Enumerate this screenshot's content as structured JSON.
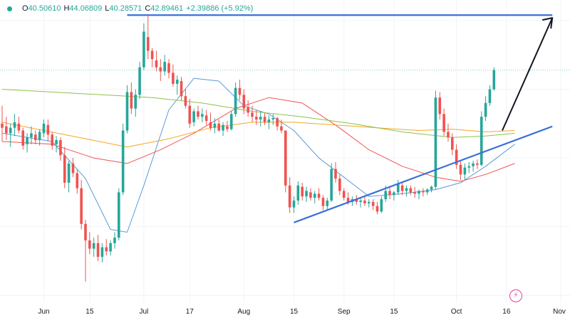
{
  "ohlc": {
    "open_label": "O",
    "open": "40.50610",
    "high_label": "H",
    "high": "44.06809",
    "low_label": "L",
    "low": "40.28571",
    "close_label": "C",
    "close": "42.89461",
    "change": "+2.39886 (+5.92%)"
  },
  "colors": {
    "up": "#26a69a",
    "down": "#ef5350",
    "ma_fast": "#5b9bd5",
    "ma_mid": "#ef5350",
    "ma_slow_orange": "#f5a623",
    "ma_slow_green": "#8bc34a",
    "trendline": "#3a6fd8",
    "projection": "#131722"
  },
  "chart_data": {
    "type": "candlestick",
    "price_range": [
      29.5,
      51.5
    ],
    "x_axis_ticks": [
      "Jun",
      "15",
      "Jul",
      "17",
      "Aug",
      "15",
      "Sep",
      "15",
      "Oct",
      "16",
      "Nov"
    ],
    "candles": [
      [
        42.5,
        43.8,
        41.2,
        42.2
      ],
      [
        42.3,
        43.0,
        41.3,
        41.8
      ],
      [
        41.8,
        42.5,
        40.8,
        42.2
      ],
      [
        42.2,
        43.2,
        41.6,
        42.6
      ],
      [
        42.5,
        43.0,
        41.8,
        42.0
      ],
      [
        42.0,
        42.2,
        40.6,
        40.9
      ],
      [
        41.0,
        41.8,
        40.4,
        41.5
      ],
      [
        41.5,
        42.3,
        41.0,
        41.8
      ],
      [
        41.7,
        42.0,
        41.0,
        41.3
      ],
      [
        41.3,
        42.1,
        40.9,
        41.9
      ],
      [
        41.8,
        42.8,
        41.5,
        42.5
      ],
      [
        42.4,
        42.8,
        41.2,
        41.7
      ],
      [
        41.7,
        41.9,
        40.6,
        40.9
      ],
      [
        41.0,
        41.6,
        40.4,
        41.3
      ],
      [
        41.3,
        41.5,
        39.8,
        40.2
      ],
      [
        40.2,
        40.8,
        37.8,
        38.2
      ],
      [
        38.2,
        39.8,
        37.5,
        39.6
      ],
      [
        39.6,
        40.0,
        38.6,
        38.9
      ],
      [
        38.9,
        39.2,
        37.4,
        37.8
      ],
      [
        37.8,
        38.4,
        34.8,
        35.2
      ],
      [
        35.2,
        35.5,
        31.0,
        34.0
      ],
      [
        34.0,
        34.6,
        33.0,
        33.4
      ],
      [
        33.4,
        34.2,
        32.8,
        33.8
      ],
      [
        33.8,
        34.4,
        32.5,
        32.8
      ],
      [
        32.8,
        33.8,
        32.4,
        33.5
      ],
      [
        33.5,
        34.1,
        32.9,
        33.2
      ],
      [
        33.2,
        34.0,
        32.9,
        33.8
      ],
      [
        33.8,
        34.6,
        33.4,
        34.2
      ],
      [
        34.2,
        37.8,
        34.0,
        37.5
      ],
      [
        37.5,
        42.5,
        37.3,
        42.0
      ],
      [
        42.0,
        45.3,
        41.8,
        44.8
      ],
      [
        44.8,
        45.5,
        43.2,
        43.6
      ],
      [
        43.6,
        45.0,
        43.0,
        44.6
      ],
      [
        44.6,
        47.0,
        44.3,
        46.6
      ],
      [
        46.6,
        49.8,
        46.4,
        49.2
      ],
      [
        48.8,
        50.4,
        47.2,
        47.8
      ],
      [
        47.8,
        48.0,
        46.6,
        47.2
      ],
      [
        47.1,
        47.8,
        46.3,
        46.6
      ],
      [
        46.6,
        47.2,
        45.6,
        46.3
      ],
      [
        46.3,
        47.5,
        46.0,
        47.0
      ],
      [
        46.9,
        47.2,
        45.8,
        46.2
      ],
      [
        46.2,
        46.8,
        45.2,
        45.4
      ],
      [
        45.4,
        46.0,
        44.6,
        45.7
      ],
      [
        45.6,
        45.9,
        44.2,
        44.5
      ],
      [
        44.5,
        45.0,
        43.6,
        43.8
      ],
      [
        43.8,
        44.3,
        42.2,
        42.5
      ],
      [
        42.6,
        43.6,
        42.3,
        43.4
      ],
      [
        43.4,
        43.8,
        42.8,
        43.0
      ],
      [
        43.0,
        43.6,
        42.6,
        43.2
      ],
      [
        43.1,
        43.5,
        42.4,
        42.7
      ],
      [
        42.6,
        43.3,
        42.0,
        42.2
      ],
      [
        42.2,
        42.9,
        41.8,
        42.5
      ],
      [
        42.5,
        42.8,
        41.9,
        42.0
      ],
      [
        42.0,
        42.6,
        41.6,
        42.4
      ],
      [
        42.3,
        42.7,
        41.9,
        42.1
      ],
      [
        42.1,
        43.4,
        42.0,
        43.2
      ],
      [
        43.2,
        45.5,
        43.0,
        45.1
      ],
      [
        45.1,
        45.7,
        44.2,
        44.6
      ],
      [
        44.6,
        45.0,
        43.2,
        43.6
      ],
      [
        43.7,
        44.2,
        43.0,
        43.3
      ],
      [
        43.3,
        43.8,
        42.6,
        43.0
      ],
      [
        43.0,
        43.5,
        42.4,
        42.8
      ],
      [
        42.8,
        43.4,
        42.3,
        43.0
      ],
      [
        43.0,
        43.3,
        42.4,
        42.6
      ],
      [
        42.6,
        43.1,
        42.1,
        42.8
      ],
      [
        42.8,
        43.2,
        42.4,
        42.9
      ],
      [
        42.9,
        43.0,
        42.0,
        42.3
      ],
      [
        42.3,
        42.8,
        41.8,
        42.0
      ],
      [
        42.0,
        41.9,
        37.5,
        38.0
      ],
      [
        38.0,
        38.6,
        36.0,
        36.4
      ],
      [
        36.4,
        37.2,
        36.0,
        36.9
      ],
      [
        36.9,
        38.3,
        36.6,
        38.0
      ],
      [
        37.9,
        38.2,
        36.9,
        37.2
      ],
      [
        37.2,
        37.9,
        36.8,
        37.6
      ],
      [
        37.5,
        37.8,
        36.9,
        37.1
      ],
      [
        37.1,
        37.6,
        36.7,
        37.4
      ],
      [
        37.4,
        37.8,
        36.9,
        37.1
      ],
      [
        37.1,
        37.3,
        36.2,
        36.5
      ],
      [
        36.5,
        37.1,
        36.2,
        36.9
      ],
      [
        36.9,
        39.6,
        36.8,
        39.2
      ],
      [
        39.2,
        39.7,
        38.2,
        38.5
      ],
      [
        38.5,
        38.8,
        37.3,
        37.6
      ],
      [
        37.6,
        37.8,
        36.9,
        37.1
      ],
      [
        37.1,
        37.5,
        36.6,
        36.8
      ],
      [
        36.8,
        37.2,
        36.5,
        37.0
      ],
      [
        37.0,
        37.3,
        36.6,
        36.8
      ],
      [
        36.8,
        37.1,
        36.4,
        36.9
      ],
      [
        36.9,
        37.2,
        36.5,
        36.7
      ],
      [
        36.7,
        37.0,
        36.4,
        36.8
      ],
      [
        36.8,
        37.0,
        36.2,
        36.5
      ],
      [
        36.5,
        36.8,
        35.9,
        36.1
      ],
      [
        36.1,
        37.2,
        36.0,
        37.0
      ],
      [
        37.0,
        38.0,
        36.8,
        37.6
      ],
      [
        37.6,
        37.9,
        37.0,
        37.3
      ],
      [
        37.3,
        37.6,
        36.9,
        37.5
      ],
      [
        37.5,
        38.4,
        37.3,
        38.1
      ],
      [
        38.0,
        38.3,
        37.3,
        37.6
      ],
      [
        37.6,
        38.0,
        37.2,
        37.8
      ],
      [
        37.8,
        38.0,
        37.3,
        37.5
      ],
      [
        37.5,
        37.9,
        37.1,
        37.4
      ],
      [
        37.4,
        37.7,
        37.0,
        37.6
      ],
      [
        37.6,
        37.8,
        37.2,
        37.5
      ],
      [
        37.5,
        37.8,
        37.3,
        37.7
      ],
      [
        37.7,
        38.0,
        37.5,
        37.9
      ],
      [
        37.9,
        44.9,
        37.7,
        44.4
      ],
      [
        44.4,
        44.8,
        42.8,
        43.2
      ],
      [
        43.2,
        43.6,
        41.6,
        41.9
      ],
      [
        41.9,
        42.5,
        41.2,
        41.5
      ],
      [
        41.5,
        41.8,
        40.2,
        40.6
      ],
      [
        40.6,
        41.0,
        39.2,
        39.5
      ],
      [
        39.5,
        39.8,
        38.4,
        38.8
      ],
      [
        38.8,
        39.6,
        38.4,
        39.3
      ],
      [
        39.3,
        39.7,
        38.9,
        39.4
      ],
      [
        39.4,
        39.8,
        39.0,
        39.6
      ],
      [
        39.6,
        39.9,
        39.2,
        39.5
      ],
      [
        39.5,
        43.4,
        39.4,
        43.0
      ],
      [
        43.0,
        44.5,
        42.7,
        44.0
      ],
      [
        44.0,
        45.3,
        43.8,
        45.0
      ],
      [
        45.0,
        46.6,
        44.9,
        46.4
      ]
    ],
    "moving_averages": [
      {
        "color": "#5b9bd5",
        "points": [
          [
            0,
            41.8
          ],
          [
            12,
            41.2
          ],
          [
            20,
            38.5
          ],
          [
            26,
            34.8
          ],
          [
            30,
            34.6
          ],
          [
            34,
            38.0
          ],
          [
            40,
            43.5
          ],
          [
            46,
            45.8
          ],
          [
            52,
            45.6
          ],
          [
            58,
            43.8
          ],
          [
            64,
            43.2
          ],
          [
            70,
            42.0
          ],
          [
            76,
            40.0
          ],
          [
            82,
            38.6
          ],
          [
            88,
            37.2
          ],
          [
            96,
            37.4
          ],
          [
            104,
            37.7
          ],
          [
            110,
            38.2
          ],
          [
            116,
            39.4
          ],
          [
            123,
            41.0
          ]
        ]
      },
      {
        "color": "#ef5350",
        "points": [
          [
            0,
            41.2
          ],
          [
            12,
            41.0
          ],
          [
            22,
            40.0
          ],
          [
            30,
            39.6
          ],
          [
            38,
            40.6
          ],
          [
            46,
            41.8
          ],
          [
            56,
            43.6
          ],
          [
            64,
            44.4
          ],
          [
            72,
            44.0
          ],
          [
            80,
            42.4
          ],
          [
            88,
            40.6
          ],
          [
            96,
            39.4
          ],
          [
            104,
            38.6
          ],
          [
            110,
            38.3
          ],
          [
            116,
            38.8
          ],
          [
            123,
            39.6
          ]
        ]
      },
      {
        "color": "#f5a623",
        "points": [
          [
            0,
            42.6
          ],
          [
            10,
            42.0
          ],
          [
            20,
            41.4
          ],
          [
            30,
            40.8
          ],
          [
            40,
            41.4
          ],
          [
            50,
            42.2
          ],
          [
            60,
            42.6
          ],
          [
            70,
            42.6
          ],
          [
            80,
            42.4
          ],
          [
            90,
            42.2
          ],
          [
            100,
            42.0
          ],
          [
            108,
            42.1
          ],
          [
            116,
            41.9
          ],
          [
            123,
            42.0
          ]
        ]
      },
      {
        "color": "#8bc34a",
        "points": [
          [
            0,
            45.0
          ],
          [
            12,
            44.8
          ],
          [
            24,
            44.6
          ],
          [
            36,
            44.4
          ],
          [
            48,
            44.0
          ],
          [
            60,
            43.4
          ],
          [
            72,
            43.0
          ],
          [
            84,
            42.5
          ],
          [
            96,
            41.9
          ],
          [
            108,
            41.5
          ],
          [
            116,
            41.6
          ],
          [
            123,
            41.8
          ]
        ]
      }
    ],
    "annotations": [
      {
        "kind": "resistance",
        "points": [
          [
            30,
            50.4
          ],
          [
            132,
            50.4
          ]
        ]
      },
      {
        "kind": "support",
        "points": [
          [
            70,
            35.3
          ],
          [
            132,
            42.3
          ]
        ]
      },
      {
        "kind": "projection",
        "points": [
          [
            120,
            42.0
          ],
          [
            132,
            50.2
          ]
        ]
      }
    ]
  }
}
